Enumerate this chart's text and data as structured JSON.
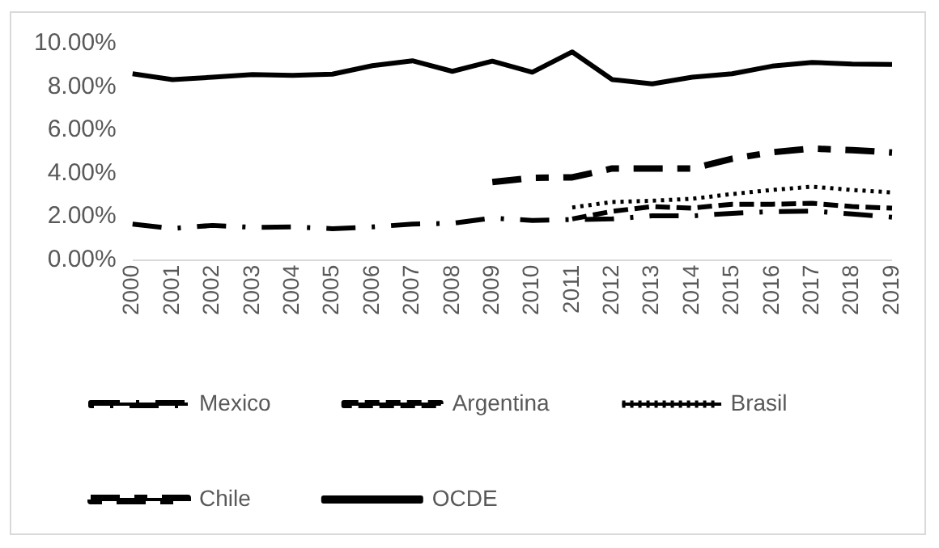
{
  "chart_data": {
    "type": "line",
    "categories": [
      "2000",
      "2001",
      "2002",
      "2003",
      "2004",
      "2005",
      "2006",
      "2007",
      "2008",
      "2009",
      "2010",
      "2011",
      "2012",
      "2013",
      "2014",
      "2015",
      "2016",
      "2017",
      "2018",
      "2019"
    ],
    "series": [
      {
        "name": "Mexico",
        "color": "#000000",
        "line_style": "dashdot",
        "values": [
          1.66,
          1.46,
          1.6,
          1.51,
          1.53,
          1.45,
          1.53,
          1.66,
          1.7,
          1.94,
          1.83,
          1.87,
          1.9,
          2.04,
          2.04,
          2.16,
          2.24,
          2.26,
          2.13,
          1.98
        ]
      },
      {
        "name": "Argentina",
        "color": "#000000",
        "line_style": "dashed",
        "values": [
          null,
          null,
          null,
          null,
          null,
          null,
          null,
          null,
          null,
          null,
          null,
          1.9,
          2.25,
          2.47,
          2.4,
          2.58,
          2.58,
          2.62,
          2.47,
          2.4
        ]
      },
      {
        "name": "Brasil",
        "color": "#000000",
        "line_style": "dotted",
        "values": [
          null,
          null,
          null,
          null,
          null,
          null,
          null,
          null,
          null,
          null,
          null,
          2.43,
          2.68,
          2.74,
          2.83,
          3.05,
          3.24,
          3.39,
          3.24,
          3.12
        ]
      },
      {
        "name": "Chile",
        "color": "#000000",
        "line_style": "longdash",
        "values": [
          null,
          null,
          null,
          null,
          null,
          null,
          null,
          null,
          null,
          3.6,
          3.8,
          3.82,
          4.23,
          4.23,
          4.23,
          4.68,
          4.98,
          5.15,
          5.08,
          4.97
        ]
      },
      {
        "name": "OCDE",
        "color": "#000000",
        "line_style": "solid",
        "values": [
          8.61,
          8.34,
          8.45,
          8.57,
          8.53,
          8.59,
          8.98,
          9.21,
          8.72,
          9.19,
          8.68,
          9.62,
          8.34,
          8.14,
          8.45,
          8.61,
          8.96,
          9.13,
          9.06,
          9.04
        ]
      }
    ],
    "ylim": [
      0,
      10
    ],
    "yticks": [
      {
        "value": 0,
        "label": "0.00%"
      },
      {
        "value": 2,
        "label": "2.00%"
      },
      {
        "value": 4,
        "label": "4.00%"
      },
      {
        "value": 6,
        "label": "6.00%"
      },
      {
        "value": 8,
        "label": "8.00%"
      },
      {
        "value": 10,
        "label": "10.00%"
      }
    ],
    "grid": false,
    "legend": "bottom",
    "marker": "none"
  }
}
